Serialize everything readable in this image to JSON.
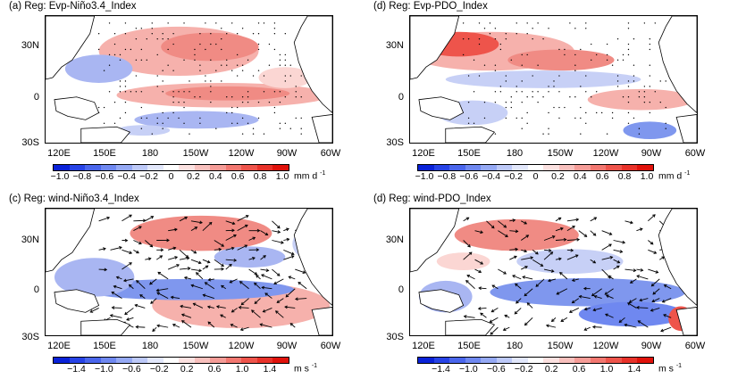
{
  "colors": {
    "positive": "#e8413a",
    "negative": "#3b5fe0",
    "land": "#ffffff",
    "coast": "#000000"
  },
  "colorbar_evp": {
    "ticks": [
      "−1.0",
      "−0.8",
      "−0.6",
      "−0.4",
      "−0.2",
      "0",
      "0.2",
      "0.4",
      "0.6",
      "0.8",
      "1.0"
    ],
    "unit": "mm d",
    "unit_exp": "-1",
    "segments": [
      "#0a22d8",
      "#2743e6",
      "#4a66ec",
      "#6f88f0",
      "#95a9f4",
      "#bdc9f8",
      "#e2e7fb",
      "#ffffff",
      "#fbe1e0",
      "#f8c0bd",
      "#f59c97",
      "#f27770",
      "#ee544b",
      "#e8322a",
      "#e0120b"
    ]
  },
  "colorbar_wind": {
    "ticks": [
      "−1.4",
      "−1.0",
      "−0.6",
      "−0.2",
      "0.2",
      "0.6",
      "1.0",
      "1.4"
    ],
    "unit": "m s",
    "unit_exp": "-1",
    "segments": [
      "#0a22d8",
      "#2743e6",
      "#4a66ec",
      "#6f88f0",
      "#95a9f4",
      "#bdc9f8",
      "#e2e7fb",
      "#ffffff",
      "#fbe1e0",
      "#f8c0bd",
      "#f59c97",
      "#f27770",
      "#ee544b",
      "#e8322a",
      "#e0120b"
    ]
  },
  "axes": {
    "lon": [
      "120E",
      "150E",
      "180",
      "150W",
      "120W",
      "90W",
      "60W"
    ],
    "lat": [
      "30N",
      "0",
      "30S"
    ]
  },
  "panels": [
    {
      "id": "a",
      "title": "(a)  Reg: Evp-Niño3.4_Index",
      "kind": "evp",
      "ref": ""
    },
    {
      "id": "d1",
      "title": "(d)  Reg: Evp-PDO_Index",
      "kind": "evp",
      "ref": ""
    },
    {
      "id": "c",
      "title": "(c)  Reg: wind-Niño3.4_Index",
      "kind": "wind",
      "ref": "2"
    },
    {
      "id": "d2",
      "title": "(d)  Reg: wind-PDO_Index",
      "kind": "wind",
      "ref": "2"
    }
  ]
}
